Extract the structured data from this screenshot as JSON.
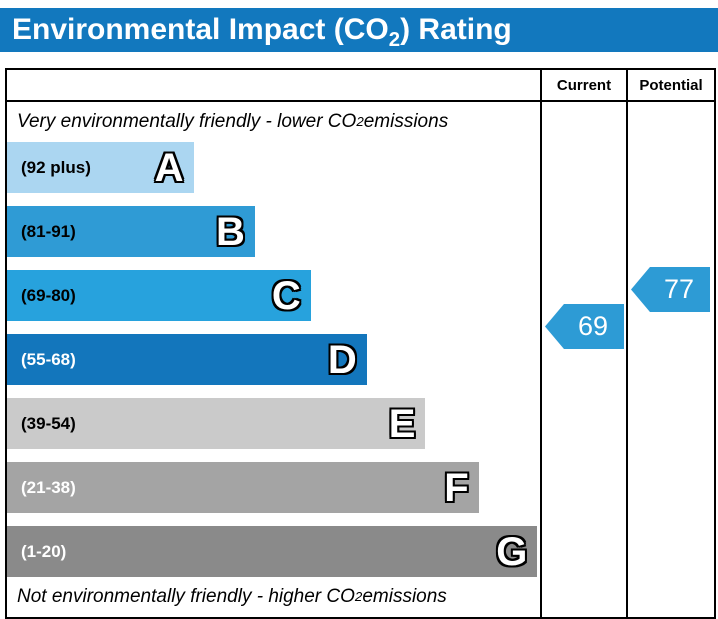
{
  "title": {
    "prefix": "Environmental Impact (CO",
    "subscript": "2",
    "suffix": ") Rating"
  },
  "colors": {
    "title_bar": "#1278be"
  },
  "table": {
    "headers": {
      "current": "Current",
      "potential": "Potential"
    },
    "top_note": {
      "prefix": "Very environmentally friendly - lower CO",
      "subscript": "2",
      "suffix": " emissions"
    },
    "bottom_note": {
      "prefix": "Not environmentally friendly - higher CO",
      "subscript": "2",
      "suffix": " emissions"
    },
    "bands": [
      {
        "letter": "A",
        "range": "(92 plus)",
        "color": "#abd6f1",
        "text_color": "#000000",
        "width": "35%"
      },
      {
        "letter": "B",
        "range": "(81-91)",
        "color": "#2f9bd5",
        "text_color": "#000000",
        "width": "46.5%"
      },
      {
        "letter": "C",
        "range": "(69-80)",
        "color": "#27a2dd",
        "text_color": "#000000",
        "width": "57%"
      },
      {
        "letter": "D",
        "range": "(55-68)",
        "color": "#1376bc",
        "text_color": "#ffffff",
        "width": "67.5%"
      },
      {
        "letter": "E",
        "range": "(39-54)",
        "color": "#cacaca",
        "text_color": "#000000",
        "width": "78.5%"
      },
      {
        "letter": "F",
        "range": "(21-38)",
        "color": "#a4a4a4",
        "text_color": "#ffffff",
        "width": "88.5%"
      },
      {
        "letter": "G",
        "range": "(1-20)",
        "color": "#8a8a8a",
        "text_color": "#ffffff",
        "width": "99.5%"
      }
    ],
    "ratings": {
      "current": {
        "value": "69",
        "color": "#2d9bd5"
      },
      "potential": {
        "value": "77",
        "color": "#2d9bd5"
      }
    }
  },
  "chart_data": {
    "type": "bar",
    "title": "Environmental Impact (CO2) Rating",
    "orientation": "horizontal",
    "categories": [
      "A (92 plus)",
      "B (81-91)",
      "C (69-80)",
      "D (55-68)",
      "E (39-54)",
      "F (21-38)",
      "G (1-20)"
    ],
    "values": [
      35,
      46.5,
      57,
      67.5,
      78.5,
      88.5,
      99.5
    ],
    "value_unit": "relative bar length %",
    "columns": [
      "Current",
      "Potential"
    ],
    "current_rating": 69,
    "current_band": "C",
    "potential_rating": 77,
    "potential_band": "C",
    "annotations": [
      "Very environmentally friendly - lower CO2 emissions",
      "Not environmentally friendly - higher CO2 emissions"
    ],
    "legend": "off",
    "grid": "off"
  }
}
